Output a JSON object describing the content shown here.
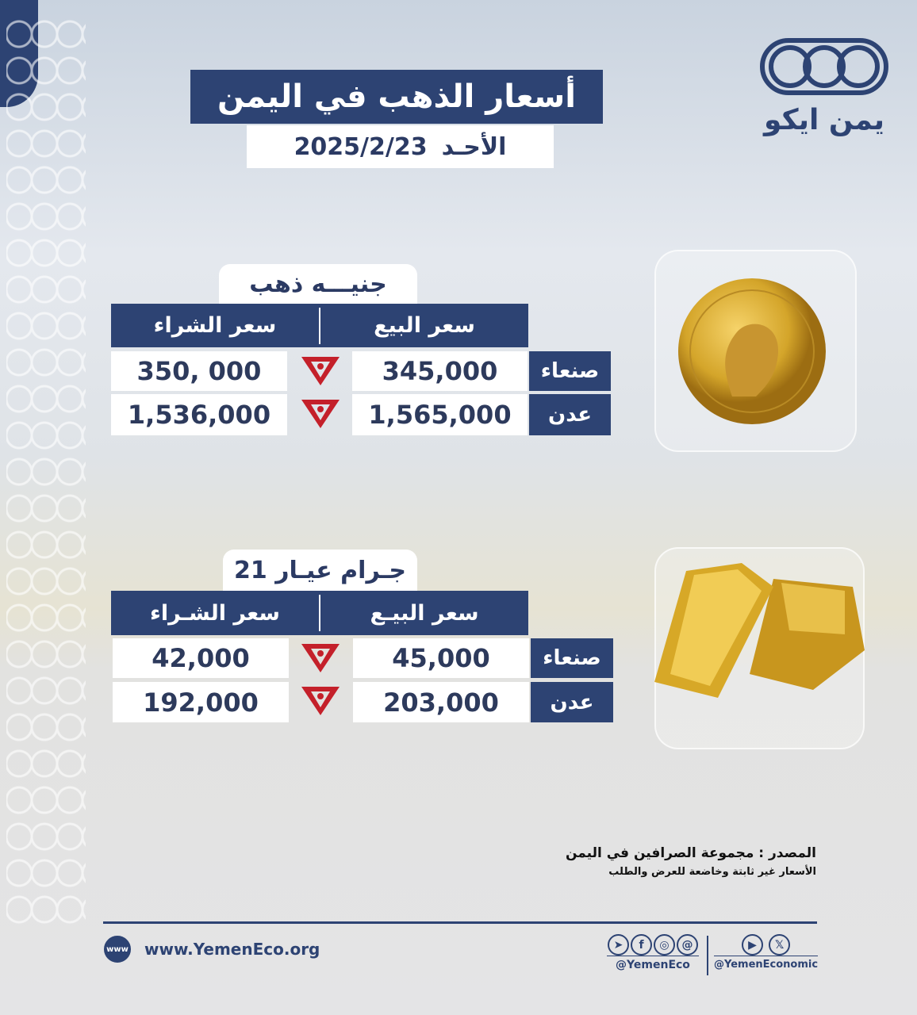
{
  "header": {
    "title": "أسعار الذهب في اليمن",
    "day": "الأحـد",
    "date": "2025/2/23"
  },
  "brand": {
    "logo_text": "يمن ايكو"
  },
  "sections": [
    {
      "label": "جنيـــه ذهب",
      "sell_header": "سعر البيع",
      "buy_header": "سعر الشراء",
      "rows": [
        {
          "city": "صنعاء",
          "sell": "345,000",
          "buy": "350, 000"
        },
        {
          "city": "عدن",
          "sell": "1,565,000",
          "buy": "1,536,000"
        }
      ]
    },
    {
      "label": "جـرام عيـار 21",
      "sell_header": "سعر البيـع",
      "buy_header": "سعر الشـراء",
      "rows": [
        {
          "city": "صنعاء",
          "sell": "45,000",
          "buy": "42,000"
        },
        {
          "city": "عدن",
          "sell": "203,000",
          "buy": "192,000"
        }
      ]
    }
  ],
  "footer": {
    "source": "المصدر : مجموعة الصرافين في اليمن",
    "note": "الأسعار غير ثابتة وخاضعة للعرض والطلب",
    "website": "www.YemenEco.org",
    "handle1": "@YemenEco",
    "handle2": "@YemenEconomic",
    "icons1": [
      "telegram-icon",
      "facebook-icon",
      "instagram-icon",
      "threads-icon"
    ],
    "icons2": [
      "youtube-icon",
      "x-icon"
    ]
  },
  "colors": {
    "navy": "#2d4373",
    "arrow": "#c4202a",
    "gold": "#d4a52a"
  }
}
